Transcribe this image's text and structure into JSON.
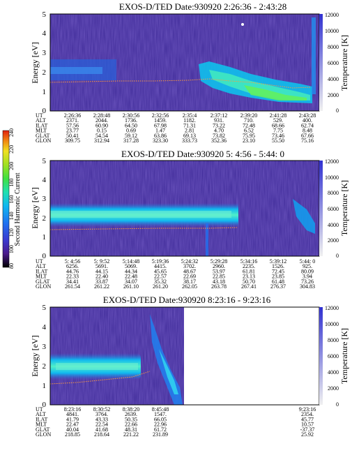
{
  "chart_data": [
    {
      "type": "heatmap",
      "title": "EXOS-D/TED   Date:930920  2:26:36 - 2:43:28",
      "ylabel": "Energy [eV]",
      "y2label": "Temperature [K]",
      "ylim": [
        0,
        5
      ],
      "y2lim": [
        0,
        12000
      ],
      "yticks": [
        "0",
        "1",
        "2",
        "3",
        "4",
        "5"
      ],
      "y2ticks": [
        "0",
        "2000",
        "4000",
        "6000",
        "8000",
        "10000",
        "12000"
      ],
      "orbit_rows": [
        "UT",
        "ALT",
        "ILAT",
        "MLT",
        "GLAT",
        "GLON"
      ],
      "columns": [
        {
          "UT": "2:26:36",
          "ALT": "2371.",
          "ILAT": "57.56",
          "MLT": "23.77",
          "GLAT": "50.41",
          "GLON": "309.75"
        },
        {
          "UT": "2:28:48",
          "ALT": "2044.",
          "ILAT": "60.90",
          "MLT": "0.15",
          "GLAT": "54.54",
          "GLON": "312.94"
        },
        {
          "UT": "2:30:56",
          "ALT": "1736.",
          "ILAT": "64.50",
          "MLT": "0.69",
          "GLAT": "59.12",
          "GLON": "317.28"
        },
        {
          "UT": "2:32:56",
          "ALT": "1459.",
          "ILAT": "67.98",
          "MLT": "1.47",
          "GLAT": "63.86",
          "GLON": "323.30"
        },
        {
          "UT": "2:35:4",
          "ALT": "1182.",
          "ILAT": "71.31",
          "MLT": "2.81",
          "GLAT": "69.13",
          "GLON": "333.73"
        },
        {
          "UT": "2:37:12",
          "ALT": "931.",
          "ILAT": "73.22",
          "MLT": "4.70",
          "GLAT": "73.82",
          "GLON": "352.36"
        },
        {
          "UT": "2:39:20",
          "ALT": "710.",
          "ILAT": "72.48",
          "MLT": "6.52",
          "GLAT": "75.95",
          "GLON": "23.10"
        },
        {
          "UT": "2:41:28",
          "ALT": "529.",
          "ILAT": "68.66",
          "MLT": "7.75",
          "GLAT": "73.46",
          "GLON": "55.50"
        },
        {
          "UT": "2:43:28",
          "ALT": "400.",
          "ILAT": "62.74",
          "MLT": "8.48",
          "GLAT": "67.66",
          "GLON": "75.16"
        }
      ]
    },
    {
      "type": "heatmap",
      "title": "EXOS-D/TED   Date:930920  5: 4:56 - 5:44: 0",
      "ylabel": "Energy [eV]",
      "y2label": "Temperature [K]",
      "ylim": [
        0,
        5
      ],
      "y2lim": [
        0,
        12000
      ],
      "yticks": [
        "0",
        "1",
        "2",
        "3",
        "4",
        "5"
      ],
      "y2ticks": [
        "0",
        "2000",
        "4000",
        "6000",
        "8000",
        "10000",
        "12000"
      ],
      "orbit_rows": [
        "UT",
        "ALT",
        "ILAT",
        "MLT",
        "GLAT",
        "GLON"
      ],
      "columns": [
        {
          "UT": "5: 4:56",
          "ALT": "6256.",
          "ILAT": "44.76",
          "MLT": "22.33",
          "GLAT": "34.41",
          "GLON": "261.54"
        },
        {
          "UT": "5: 9:52",
          "ALT": "5691.",
          "ILAT": "44.15",
          "MLT": "22.40",
          "GLAT": "33.87",
          "GLON": "261.22"
        },
        {
          "UT": "5:14:48",
          "ALT": "5069.",
          "ILAT": "44.34",
          "MLT": "22.48",
          "GLAT": "34.07",
          "GLON": "261.10"
        },
        {
          "UT": "5:19:36",
          "ALT": "4415.",
          "ILAT": "45.65",
          "MLT": "22.57",
          "GLAT": "35.32",
          "GLON": "261.20"
        },
        {
          "UT": "5:24:32",
          "ALT": "3702.",
          "ILAT": "48.67",
          "MLT": "22.69",
          "GLAT": "38.17",
          "GLON": "262.05"
        },
        {
          "UT": "5:29:28",
          "ALT": "2960.",
          "ILAT": "53.97",
          "MLT": "22.85",
          "GLAT": "43.18",
          "GLON": "263.78"
        },
        {
          "UT": "5:34:16",
          "ALT": "2235.",
          "ILAT": "61.81",
          "MLT": "23.13",
          "GLAT": "50.70",
          "GLON": "267.41"
        },
        {
          "UT": "5:39:12",
          "ALT": "1526.",
          "ILAT": "72.45",
          "MLT": "23.85",
          "GLAT": "61.48",
          "GLON": "276.37"
        },
        {
          "UT": "5:44: 0",
          "ALT": "925.",
          "ILAT": "80.09",
          "MLT": "3.94",
          "GLAT": "73.26",
          "GLON": "304.83"
        }
      ]
    },
    {
      "type": "heatmap",
      "title": "EXOS-D/TED   Date:930920  8:23:16 - 9:23:16",
      "ylabel": "Energy [eV]",
      "y2label": "Temperature [K]",
      "ylim": [
        0,
        5
      ],
      "y2lim": [
        0,
        12000
      ],
      "yticks": [
        "0",
        "1",
        "2",
        "3",
        "4",
        "5"
      ],
      "y2ticks": [
        "0",
        "2000",
        "4000",
        "6000",
        "8000",
        "10000",
        "12000"
      ],
      "orbit_rows": [
        "UT",
        "ALT",
        "ILAT",
        "MLT",
        "GLAT",
        "GLON"
      ],
      "columns": [
        {
          "UT": "8:23:16",
          "ALT": "4841.",
          "ILAT": "41.79",
          "MLT": "22.47",
          "GLAT": "40.04",
          "GLON": "218.85"
        },
        {
          "UT": "8:30:52",
          "ALT": "3764.",
          "ILAT": "43.33",
          "MLT": "22.54",
          "GLAT": "41.68",
          "GLON": "218.64"
        },
        {
          "UT": "8:38:20",
          "ALT": "2639.",
          "ILAT": "50.35",
          "MLT": "22.66",
          "GLAT": "48.31",
          "GLON": "221.22"
        },
        {
          "UT": "8:45:48",
          "ALT": "1547.",
          "ILAT": "66.05",
          "MLT": "22.96",
          "GLAT": "61.72",
          "GLON": "231.89"
        },
        {
          "UT": "9:23:16",
          "ALT": "2354.",
          "ILAT": "45.77",
          "MLT": "10.57",
          "GLAT": "-37.37",
          "GLON": "25.92"
        }
      ]
    }
  ],
  "colorbar": {
    "label": "Second Harmonic Current",
    "ticks": [
      "80",
      "100",
      "120",
      "140",
      "160",
      "180",
      "200",
      "220",
      "240"
    ],
    "colors": [
      "#000000",
      "#4a1a8c",
      "#3a3ad0",
      "#2070f0",
      "#10b8f0",
      "#20e0b0",
      "#40e040",
      "#a0e020",
      "#f0e020",
      "#f08010",
      "#e02010"
    ]
  },
  "colors": {
    "background": "#3c2896",
    "band": "#10d0e8",
    "band_core": "#40f0c0",
    "trace": "#ff9a3c"
  }
}
